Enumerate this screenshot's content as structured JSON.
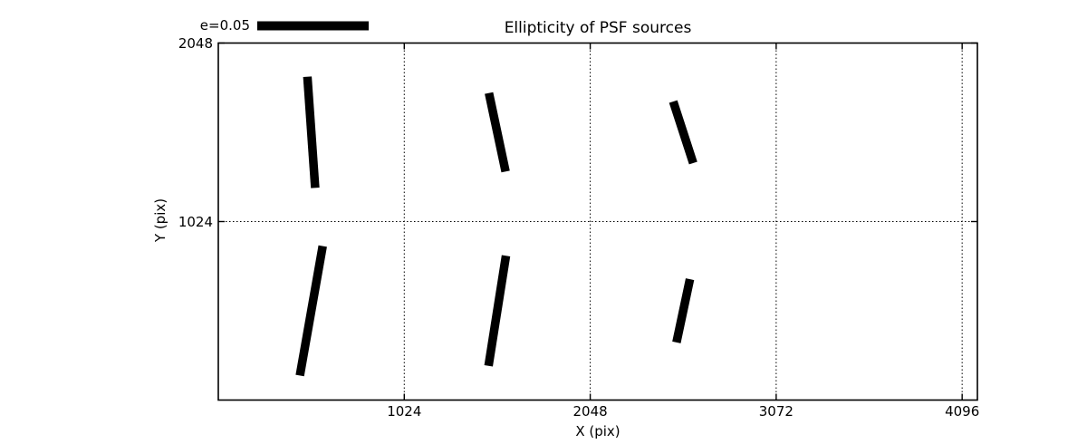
{
  "figure": {
    "title": "Ellipticity of PSF sources",
    "xlabel": "X (pix)",
    "ylabel": "Y (pix)",
    "legend": {
      "label": "e=0.05"
    },
    "colors": {
      "background": "#ffffff",
      "ink": "#000000"
    }
  },
  "chart_data": {
    "type": "scatter",
    "subtype": "ellipticity-whisker-plot",
    "title": "Ellipticity of PSF sources",
    "xlabel": "X (pix)",
    "ylabel": "Y (pix)",
    "xlim": [
      0,
      4180
    ],
    "ylim": [
      0,
      2048
    ],
    "xticks": [
      1024,
      2048,
      3072,
      4096
    ],
    "yticks": [
      1024,
      2048
    ],
    "grid": true,
    "grid_style": "dotted",
    "legend": {
      "label": "e=0.05",
      "e": 0.05,
      "position": "top-left-above-axes"
    },
    "points": [
      {
        "x": 512,
        "y": 1536,
        "e": 0.05,
        "theta_deg": 94
      },
      {
        "x": 1536,
        "y": 1536,
        "e": 0.036,
        "theta_deg": 102
      },
      {
        "x": 2560,
        "y": 1536,
        "e": 0.029,
        "theta_deg": 108
      },
      {
        "x": 512,
        "y": 512,
        "e": 0.059,
        "theta_deg": 80
      },
      {
        "x": 1536,
        "y": 512,
        "e": 0.05,
        "theta_deg": 81
      },
      {
        "x": 2560,
        "y": 512,
        "e": 0.029,
        "theta_deg": 78
      }
    ]
  }
}
